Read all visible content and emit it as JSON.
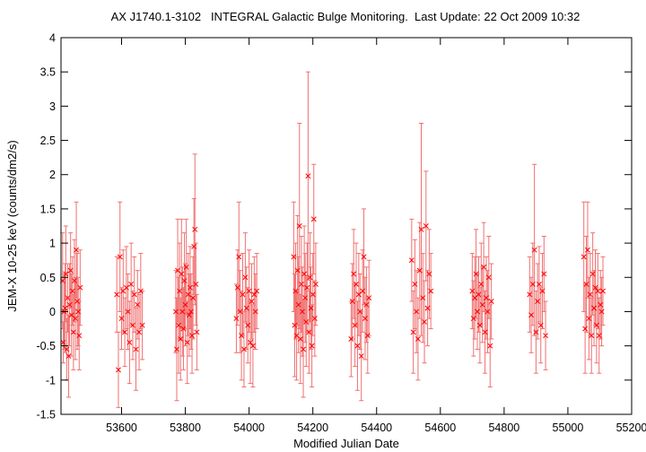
{
  "chart_data": {
    "type": "scatter",
    "title": "AX J1740.1-3102   INTEGRAL Galactic Bulge Monitoring.  Last Update: 22 Oct 2009 10:32",
    "xlabel": "Modified Julian Date",
    "ylabel": "JEM-X 10-25 keV (counts/dm2/s)",
    "xlim": [
      53410,
      55200
    ],
    "ylim": [
      -1.5,
      4
    ],
    "xticks": [
      53600,
      53800,
      54000,
      54200,
      54400,
      54600,
      54800,
      55000,
      55200
    ],
    "yticks": [
      -1.5,
      -1,
      -0.5,
      0,
      0.5,
      1,
      1.5,
      2,
      2.5,
      3,
      3.5,
      4
    ],
    "ytick_labels": [
      "-1.5",
      "-1",
      "-0.5",
      "0",
      "0.5",
      "1",
      "1.5",
      "2",
      "2.5",
      "3",
      "3.5",
      "4"
    ],
    "marker": "x",
    "color": "#ff0000",
    "errorbar_color": "#f07070",
    "grid": false,
    "legend": "none",
    "series": [
      {
        "points": [
          {
            "x": 53415,
            "y": 0.45,
            "err": 0.7
          },
          {
            "x": 53417,
            "y": -0.45,
            "err": 0.3
          },
          {
            "x": 53420,
            "y": 0.0,
            "err": 0.55
          },
          {
            "x": 53423,
            "y": 0.05,
            "err": 0.65
          },
          {
            "x": 53425,
            "y": 0.55,
            "err": 0.7
          },
          {
            "x": 53428,
            "y": -0.55,
            "err": 0.45
          },
          {
            "x": 53431,
            "y": 0.2,
            "err": 0.5
          },
          {
            "x": 53434,
            "y": -0.65,
            "err": 0.6
          },
          {
            "x": 53437,
            "y": 0.1,
            "err": 0.6
          },
          {
            "x": 53440,
            "y": 0.6,
            "err": 0.55
          },
          {
            "x": 53443,
            "y": -0.05,
            "err": 0.6
          },
          {
            "x": 53446,
            "y": 0.3,
            "err": 0.5
          },
          {
            "x": 53449,
            "y": -0.3,
            "err": 0.55
          },
          {
            "x": 53452,
            "y": 0.45,
            "err": 0.6
          },
          {
            "x": 53455,
            "y": -0.1,
            "err": 0.6
          },
          {
            "x": 53458,
            "y": 0.9,
            "err": 0.7
          },
          {
            "x": 53461,
            "y": 0.15,
            "err": 0.7
          },
          {
            "x": 53464,
            "y": 0.0,
            "err": 0.5
          },
          {
            "x": 53467,
            "y": -0.35,
            "err": 0.5
          },
          {
            "x": 53470,
            "y": 0.35,
            "err": 0.55
          },
          {
            "x": 53585,
            "y": 0.25,
            "err": 0.55
          },
          {
            "x": 53590,
            "y": -0.85,
            "err": 0.55
          },
          {
            "x": 53595,
            "y": 0.8,
            "err": 0.8
          },
          {
            "x": 53600,
            "y": -0.1,
            "err": 0.45
          },
          {
            "x": 53605,
            "y": 0.3,
            "err": 0.6
          },
          {
            "x": 53610,
            "y": -0.3,
            "err": 0.5
          },
          {
            "x": 53615,
            "y": 0.35,
            "err": 0.6
          },
          {
            "x": 53620,
            "y": 0.0,
            "err": 0.55
          },
          {
            "x": 53625,
            "y": -0.45,
            "err": 0.6
          },
          {
            "x": 53630,
            "y": 0.4,
            "err": 0.6
          },
          {
            "x": 53635,
            "y": -0.2,
            "err": 0.5
          },
          {
            "x": 53640,
            "y": 0.25,
            "err": 0.55
          },
          {
            "x": 53645,
            "y": -0.55,
            "err": 0.6
          },
          {
            "x": 53650,
            "y": 0.1,
            "err": 0.5
          },
          {
            "x": 53655,
            "y": -0.3,
            "err": 0.55
          },
          {
            "x": 53660,
            "y": 0.3,
            "err": 0.55
          },
          {
            "x": 53665,
            "y": -0.2,
            "err": 0.5
          },
          {
            "x": 53770,
            "y": 0.0,
            "err": 0.6
          },
          {
            "x": 53773,
            "y": -0.55,
            "err": 0.75
          },
          {
            "x": 53776,
            "y": 0.6,
            "err": 0.75
          },
          {
            "x": 53779,
            "y": -0.2,
            "err": 0.7
          },
          {
            "x": 53782,
            "y": 0.3,
            "err": 0.7
          },
          {
            "x": 53785,
            "y": -0.4,
            "err": 0.6
          },
          {
            "x": 53788,
            "y": 0.55,
            "err": 0.8
          },
          {
            "x": 53791,
            "y": 0.0,
            "err": 0.65
          },
          {
            "x": 53794,
            "y": -0.25,
            "err": 0.6
          },
          {
            "x": 53797,
            "y": 0.45,
            "err": 0.7
          },
          {
            "x": 53800,
            "y": 0.1,
            "err": 0.6
          },
          {
            "x": 53803,
            "y": 0.65,
            "err": 0.7
          },
          {
            "x": 53806,
            "y": -0.45,
            "err": 0.6
          },
          {
            "x": 53809,
            "y": 0.25,
            "err": 0.6
          },
          {
            "x": 53812,
            "y": -0.05,
            "err": 0.6
          },
          {
            "x": 53815,
            "y": 0.35,
            "err": 0.6
          },
          {
            "x": 53818,
            "y": 0.0,
            "err": 0.55
          },
          {
            "x": 53821,
            "y": -0.35,
            "err": 0.55
          },
          {
            "x": 53824,
            "y": 0.2,
            "err": 0.6
          },
          {
            "x": 53827,
            "y": 0.95,
            "err": 0.7
          },
          {
            "x": 53830,
            "y": 1.2,
            "err": 1.1
          },
          {
            "x": 53833,
            "y": 0.4,
            "err": 0.6
          },
          {
            "x": 53836,
            "y": -0.3,
            "err": 0.55
          },
          {
            "x": 53960,
            "y": -0.1,
            "err": 0.5
          },
          {
            "x": 53964,
            "y": 0.35,
            "err": 0.55
          },
          {
            "x": 53968,
            "y": 0.8,
            "err": 0.8
          },
          {
            "x": 53972,
            "y": 0.0,
            "err": 0.6
          },
          {
            "x": 53976,
            "y": -0.35,
            "err": 0.65
          },
          {
            "x": 53980,
            "y": 0.25,
            "err": 0.6
          },
          {
            "x": 53984,
            "y": -0.55,
            "err": 0.55
          },
          {
            "x": 53988,
            "y": 0.5,
            "err": 0.65
          },
          {
            "x": 53992,
            "y": 0.05,
            "err": 0.6
          },
          {
            "x": 53996,
            "y": -0.2,
            "err": 0.55
          },
          {
            "x": 54000,
            "y": 0.3,
            "err": 0.6
          },
          {
            "x": 54004,
            "y": -0.45,
            "err": 0.6
          },
          {
            "x": 54008,
            "y": 0.15,
            "err": 0.55
          },
          {
            "x": 54012,
            "y": -0.5,
            "err": 0.6
          },
          {
            "x": 54016,
            "y": 0.25,
            "err": 0.55
          },
          {
            "x": 54020,
            "y": 0.0,
            "err": 0.55
          },
          {
            "x": 54024,
            "y": 0.3,
            "err": 0.55
          },
          {
            "x": 54140,
            "y": 0.8,
            "err": 0.8
          },
          {
            "x": 54143,
            "y": -0.2,
            "err": 0.75
          },
          {
            "x": 54146,
            "y": 0.3,
            "err": 0.7
          },
          {
            "x": 54149,
            "y": -0.35,
            "err": 0.65
          },
          {
            "x": 54152,
            "y": 0.6,
            "err": 0.8
          },
          {
            "x": 54155,
            "y": 0.1,
            "err": 0.7
          },
          {
            "x": 54158,
            "y": 1.25,
            "err": 1.5
          },
          {
            "x": 54161,
            "y": -0.4,
            "err": 0.65
          },
          {
            "x": 54164,
            "y": 0.4,
            "err": 0.7
          },
          {
            "x": 54167,
            "y": 0.0,
            "err": 0.65
          },
          {
            "x": 54170,
            "y": -0.55,
            "err": 0.7
          },
          {
            "x": 54173,
            "y": 0.55,
            "err": 0.7
          },
          {
            "x": 54176,
            "y": 0.2,
            "err": 0.65
          },
          {
            "x": 54179,
            "y": -0.15,
            "err": 0.65
          },
          {
            "x": 54182,
            "y": 0.35,
            "err": 0.65
          },
          {
            "x": 54185,
            "y": 1.98,
            "err": 1.52
          },
          {
            "x": 54188,
            "y": -0.3,
            "err": 0.6
          },
          {
            "x": 54191,
            "y": 0.5,
            "err": 0.65
          },
          {
            "x": 54194,
            "y": 0.05,
            "err": 0.6
          },
          {
            "x": 54197,
            "y": -0.5,
            "err": 0.6
          },
          {
            "x": 54200,
            "y": 0.25,
            "err": 0.6
          },
          {
            "x": 54203,
            "y": 1.35,
            "err": 0.8
          },
          {
            "x": 54206,
            "y": -0.1,
            "err": 0.55
          },
          {
            "x": 54209,
            "y": 0.4,
            "err": 0.6
          },
          {
            "x": 54320,
            "y": -0.4,
            "err": 0.55
          },
          {
            "x": 54324,
            "y": 0.15,
            "err": 0.55
          },
          {
            "x": 54328,
            "y": 0.55,
            "err": 0.65
          },
          {
            "x": 54332,
            "y": -0.2,
            "err": 0.6
          },
          {
            "x": 54336,
            "y": 0.4,
            "err": 0.6
          },
          {
            "x": 54340,
            "y": -0.5,
            "err": 0.65
          },
          {
            "x": 54344,
            "y": 0.25,
            "err": 0.6
          },
          {
            "x": 54348,
            "y": 0.0,
            "err": 0.55
          },
          {
            "x": 54352,
            "y": -0.65,
            "err": 0.65
          },
          {
            "x": 54356,
            "y": 0.3,
            "err": 0.6
          },
          {
            "x": 54360,
            "y": 0.8,
            "err": 0.7
          },
          {
            "x": 54364,
            "y": -0.1,
            "err": 0.6
          },
          {
            "x": 54368,
            "y": 0.1,
            "err": 0.55
          },
          {
            "x": 54372,
            "y": -0.35,
            "err": 0.55
          },
          {
            "x": 54376,
            "y": 0.2,
            "err": 0.55
          },
          {
            "x": 54510,
            "y": 0.75,
            "err": 0.6
          },
          {
            "x": 54515,
            "y": -0.3,
            "err": 0.6
          },
          {
            "x": 54520,
            "y": 0.4,
            "err": 0.65
          },
          {
            "x": 54525,
            "y": 0.0,
            "err": 0.6
          },
          {
            "x": 54530,
            "y": -0.4,
            "err": 0.6
          },
          {
            "x": 54535,
            "y": 0.6,
            "err": 0.7
          },
          {
            "x": 54540,
            "y": 1.2,
            "err": 1.55
          },
          {
            "x": 54545,
            "y": 0.2,
            "err": 0.65
          },
          {
            "x": 54550,
            "y": -0.15,
            "err": 0.6
          },
          {
            "x": 54555,
            "y": 1.25,
            "err": 0.8
          },
          {
            "x": 54560,
            "y": 0.05,
            "err": 0.55
          },
          {
            "x": 54565,
            "y": 0.55,
            "err": 0.65
          },
          {
            "x": 54570,
            "y": 0.3,
            "err": 0.55
          },
          {
            "x": 54700,
            "y": 0.3,
            "err": 0.55
          },
          {
            "x": 54704,
            "y": -0.1,
            "err": 0.55
          },
          {
            "x": 54708,
            "y": 0.2,
            "err": 0.6
          },
          {
            "x": 54712,
            "y": 0.55,
            "err": 0.65
          },
          {
            "x": 54716,
            "y": 0.0,
            "err": 0.55
          },
          {
            "x": 54720,
            "y": 0.25,
            "err": 0.55
          },
          {
            "x": 54724,
            "y": -0.2,
            "err": 0.55
          },
          {
            "x": 54728,
            "y": 0.4,
            "err": 0.6
          },
          {
            "x": 54732,
            "y": 0.1,
            "err": 0.55
          },
          {
            "x": 54736,
            "y": 0.65,
            "err": 0.65
          },
          {
            "x": 54740,
            "y": -0.3,
            "err": 0.6
          },
          {
            "x": 54744,
            "y": 0.2,
            "err": 0.6
          },
          {
            "x": 54748,
            "y": 0.0,
            "err": 0.6
          },
          {
            "x": 54752,
            "y": 0.5,
            "err": 0.6
          },
          {
            "x": 54756,
            "y": -0.5,
            "err": 0.6
          },
          {
            "x": 54760,
            "y": 0.15,
            "err": 0.55
          },
          {
            "x": 54880,
            "y": 0.25,
            "err": 0.55
          },
          {
            "x": 54885,
            "y": -0.05,
            "err": 0.55
          },
          {
            "x": 54890,
            "y": 0.4,
            "err": 0.6
          },
          {
            "x": 54895,
            "y": 0.9,
            "err": 1.25
          },
          {
            "x": 54900,
            "y": -0.3,
            "err": 0.6
          },
          {
            "x": 54905,
            "y": 0.15,
            "err": 0.55
          },
          {
            "x": 54910,
            "y": 0.4,
            "err": 0.55
          },
          {
            "x": 54915,
            "y": -0.2,
            "err": 0.55
          },
          {
            "x": 54920,
            "y": 0.3,
            "err": 0.55
          },
          {
            "x": 54925,
            "y": 0.55,
            "err": 0.55
          },
          {
            "x": 54930,
            "y": -0.35,
            "err": 0.5
          },
          {
            "x": 55050,
            "y": 0.8,
            "err": 0.8
          },
          {
            "x": 55054,
            "y": -0.25,
            "err": 0.65
          },
          {
            "x": 55058,
            "y": 0.4,
            "err": 0.7
          },
          {
            "x": 55062,
            "y": 0.9,
            "err": 0.7
          },
          {
            "x": 55066,
            "y": -0.1,
            "err": 0.6
          },
          {
            "x": 55070,
            "y": 0.25,
            "err": 0.6
          },
          {
            "x": 55074,
            "y": -0.35,
            "err": 0.55
          },
          {
            "x": 55078,
            "y": 0.55,
            "err": 0.6
          },
          {
            "x": 55082,
            "y": 0.05,
            "err": 0.55
          },
          {
            "x": 55086,
            "y": 0.35,
            "err": 0.55
          },
          {
            "x": 55090,
            "y": -0.2,
            "err": 0.55
          },
          {
            "x": 55094,
            "y": 0.3,
            "err": 0.55
          },
          {
            "x": 55098,
            "y": -0.35,
            "err": 0.55
          },
          {
            "x": 55102,
            "y": 0.1,
            "err": 0.5
          },
          {
            "x": 55106,
            "y": 0.0,
            "err": 0.5
          },
          {
            "x": 55110,
            "y": 0.3,
            "err": 0.5
          }
        ]
      }
    ]
  }
}
